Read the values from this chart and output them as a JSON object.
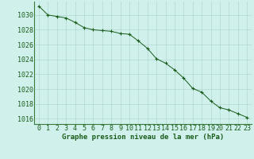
{
  "x": [
    0,
    1,
    2,
    3,
    4,
    5,
    6,
    7,
    8,
    9,
    10,
    11,
    12,
    13,
    14,
    15,
    16,
    17,
    18,
    19,
    20,
    21,
    22,
    23
  ],
  "y": [
    1031.2,
    1030.0,
    1029.8,
    1029.6,
    1029.0,
    1028.3,
    1028.0,
    1027.9,
    1027.8,
    1027.5,
    1027.4,
    1026.5,
    1025.5,
    1024.1,
    1023.5,
    1022.6,
    1021.5,
    1020.1,
    1019.6,
    1018.4,
    1017.5,
    1017.2,
    1016.7,
    1016.2
  ],
  "line_color": "#1a5c1a",
  "marker": "+",
  "marker_color": "#1a5c1a",
  "background_color": "#cff0eb",
  "grid_color": "#b0d8d0",
  "ylabel_ticks": [
    1016,
    1018,
    1020,
    1022,
    1024,
    1026,
    1028,
    1030
  ],
  "ylim": [
    1015.3,
    1031.8
  ],
  "xlim": [
    -0.5,
    23.5
  ],
  "xlabel": "Graphe pression niveau de la mer (hPa)",
  "xlabel_fontsize": 6.5,
  "tick_fontsize": 6.0,
  "xlabel_color": "#1a5c1a",
  "tick_color": "#1a5c1a",
  "axis_color": "#3a7a3a"
}
